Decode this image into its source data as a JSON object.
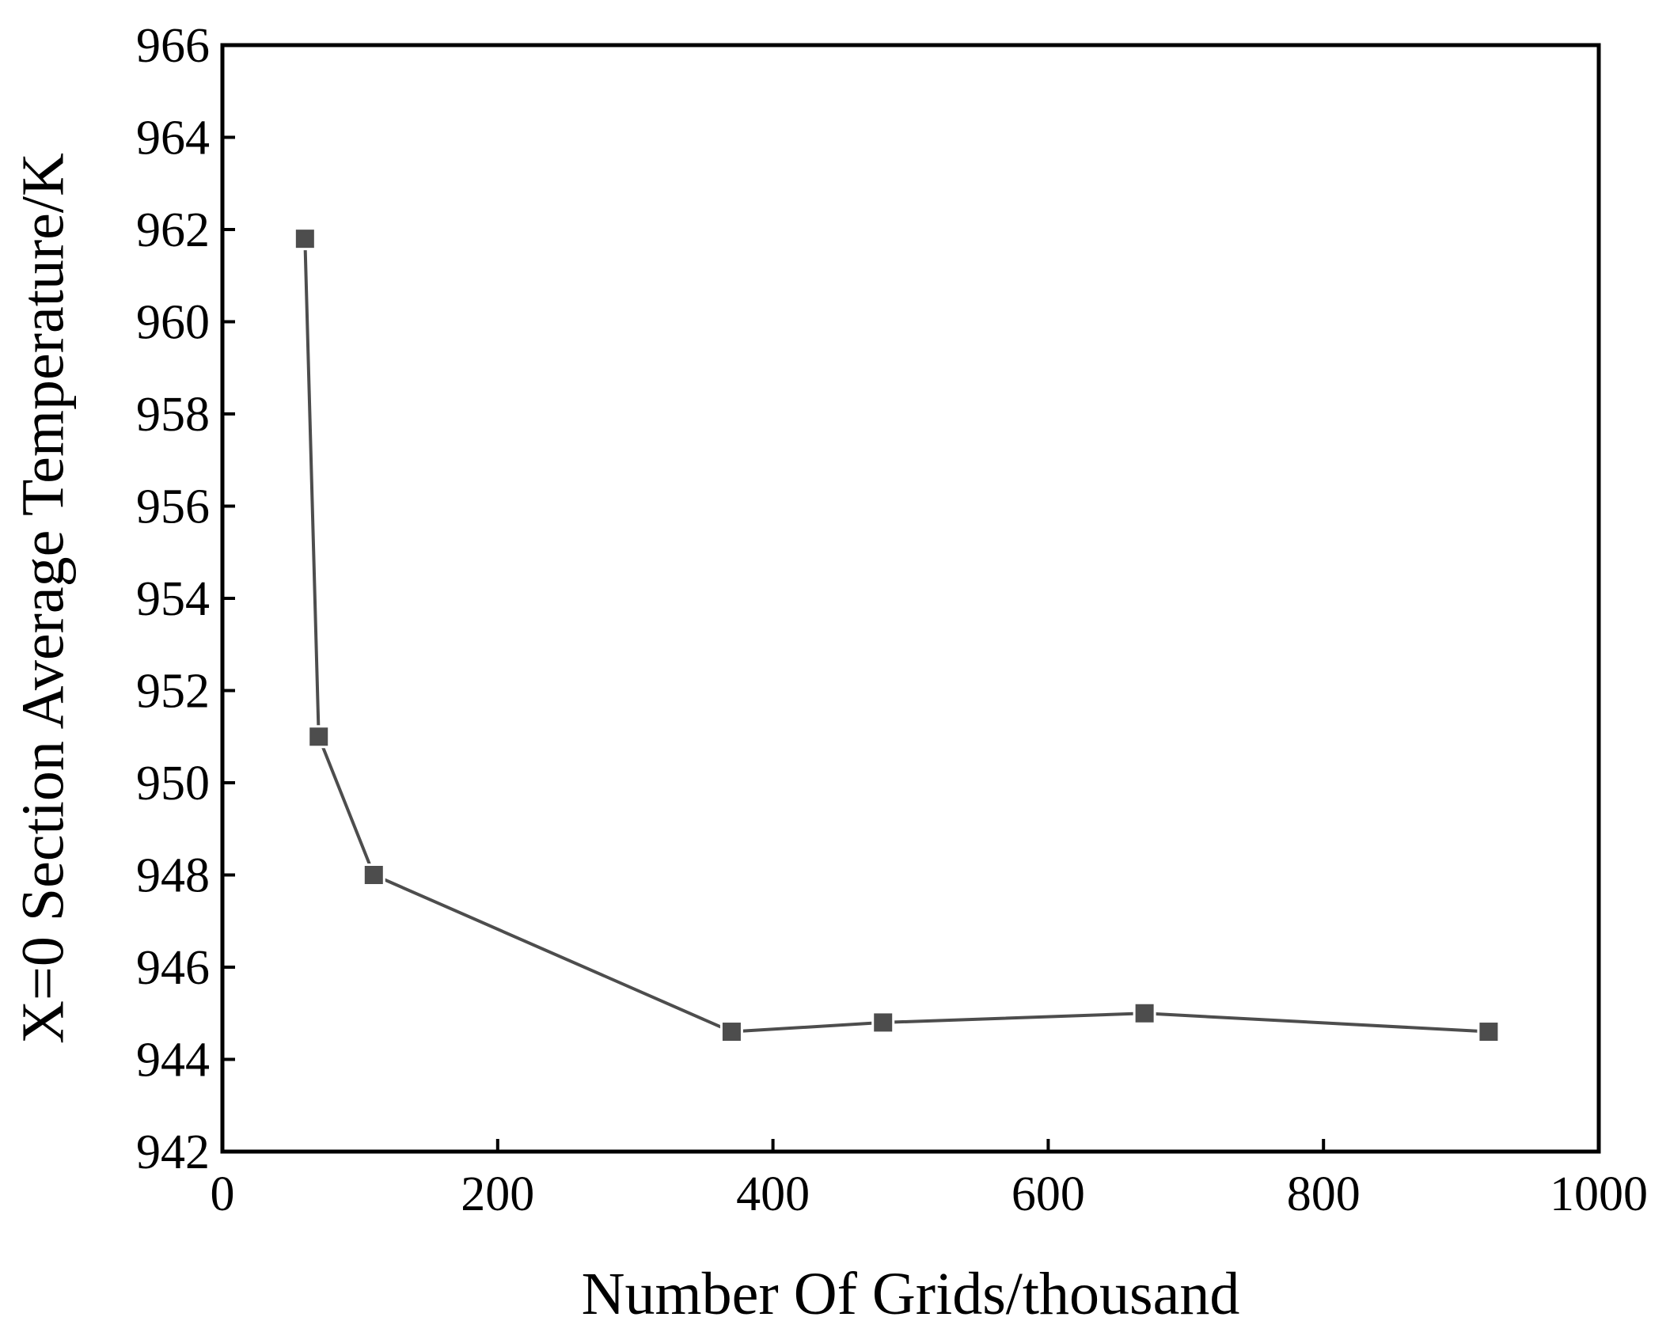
{
  "chart_data": {
    "type": "line",
    "title": "",
    "xlabel": "Number Of Grids/thousand",
    "ylabel": "X=0 Section Average Temperature/K",
    "xlim": [
      0,
      1000
    ],
    "ylim": [
      942,
      966
    ],
    "xticks": [
      0,
      200,
      400,
      600,
      800,
      1000
    ],
    "yticks": [
      942,
      944,
      946,
      948,
      950,
      952,
      954,
      956,
      958,
      960,
      962,
      964,
      966
    ],
    "grid": false,
    "legend": "none",
    "series": [
      {
        "marker": "square",
        "color": "#4d4d4d",
        "points": [
          {
            "x": 60,
            "y": 961.8
          },
          {
            "x": 70,
            "y": 951.0
          },
          {
            "x": 110,
            "y": 948.0
          },
          {
            "x": 370,
            "y": 944.6
          },
          {
            "x": 480,
            "y": 944.8
          },
          {
            "x": 670,
            "y": 945.0
          },
          {
            "x": 920,
            "y": 944.6
          }
        ]
      }
    ]
  }
}
